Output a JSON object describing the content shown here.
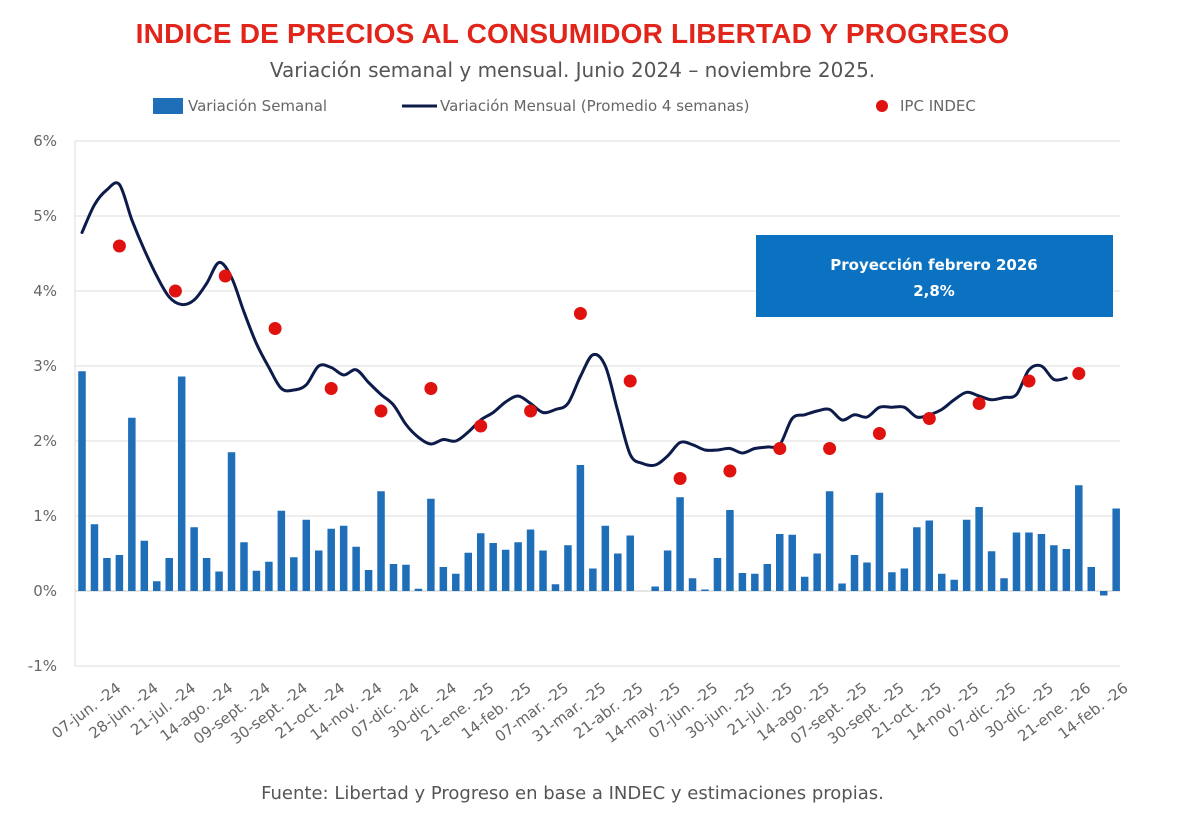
{
  "chart_data": {
    "type": "bar",
    "title": "INDICE DE PRECIOS AL CONSUMIDOR LIBERTAD Y PROGRESO",
    "subtitle": "Variación semanal y mensual. Junio 2024 – noviembre 2025.",
    "source": "Fuente: Libertad y Progreso en base a INDEC y estimaciones propias.",
    "y_ticks": [
      "6%",
      "5%",
      "4%",
      "3%",
      "2%",
      "1%",
      "0%",
      "-1%"
    ],
    "ylim": [
      -1,
      6
    ],
    "grid": true,
    "legend_position": "top",
    "x_tick_labels": [
      "07-jun. -24",
      "28-jun. -24",
      "21-jul. -24",
      "14-ago. -24",
      "09-sept. -24",
      "30-sept. -24",
      "21-oct. -24",
      "14-nov. -24",
      "07-dic. -24",
      "30-dic. -24",
      "21-ene. -25",
      "14-feb. -25",
      "07-mar. -25",
      "31-mar. -25",
      "21-abr. -25",
      "14-may. -25",
      "07-jun. -25",
      "30-jun. -25",
      "21-jul. -25",
      "14-ago. -25",
      "07-sept. -25",
      "30-sept. -25",
      "21-oct. -25",
      "14-nov. -25",
      "07-dic. -25",
      "30-dic. -25",
      "21-ene. -26",
      "14-feb. -26"
    ],
    "series": [
      {
        "name": "Variación Semanal",
        "kind": "bar",
        "color": "#1f6fb8",
        "values": [
          2.93,
          0.89,
          0.44,
          0.48,
          2.31,
          0.67,
          0.13,
          0.44,
          2.86,
          0.85,
          0.44,
          0.26,
          1.85,
          0.65,
          0.27,
          0.39,
          1.07,
          0.45,
          0.95,
          0.54,
          0.83,
          0.87,
          0.59,
          0.28,
          1.33,
          0.36,
          0.35,
          0.03,
          1.23,
          0.32,
          0.23,
          0.51,
          0.77,
          0.64,
          0.55,
          0.65,
          0.82,
          0.54,
          0.09,
          0.61,
          1.68,
          0.3,
          0.87,
          0.5,
          0.74,
          0.0,
          0.06,
          0.54,
          1.25,
          0.17,
          0.02,
          0.44,
          1.08,
          0.24,
          0.23,
          0.36,
          0.76,
          0.75,
          0.19,
          0.5,
          1.33,
          0.1,
          0.48,
          0.38,
          1.31,
          0.25,
          0.3,
          0.85,
          0.94,
          0.23,
          0.15,
          0.95,
          1.12,
          0.53,
          0.17,
          0.78,
          0.78,
          0.76,
          0.61,
          0.56,
          1.41,
          0.32,
          -0.06,
          1.1
        ]
      },
      {
        "name": "Variación Mensual (Promedio 4 semanas)",
        "kind": "line",
        "color": "#0d1b4a",
        "values": [
          4.78,
          5.15,
          5.35,
          5.42,
          4.95,
          4.55,
          4.2,
          3.92,
          3.82,
          3.88,
          4.1,
          4.38,
          4.18,
          3.72,
          3.3,
          2.98,
          2.7,
          2.68,
          2.75,
          3.0,
          2.98,
          2.88,
          2.95,
          2.78,
          2.62,
          2.48,
          2.22,
          2.05,
          1.96,
          2.02,
          2.0,
          2.12,
          2.28,
          2.38,
          2.52,
          2.6,
          2.5,
          2.38,
          2.42,
          2.5,
          2.86,
          3.15,
          3.0,
          2.4,
          1.82,
          1.7,
          1.68,
          1.8,
          1.98,
          1.95,
          1.88,
          1.88,
          1.9,
          1.84,
          1.9,
          1.92,
          1.95,
          2.3,
          2.35,
          2.4,
          2.42,
          2.28,
          2.35,
          2.32,
          2.45,
          2.45,
          2.45,
          2.32,
          2.35,
          2.42,
          2.55,
          2.65,
          2.6,
          2.55,
          2.58,
          2.62,
          2.95,
          3.0,
          2.82,
          2.84
        ]
      },
      {
        "name": "IPC INDEC",
        "kind": "scatter",
        "color": "#e0120f",
        "points": [
          [
            3,
            4.6
          ],
          [
            7.5,
            4.0
          ],
          [
            11.5,
            4.2
          ],
          [
            15.5,
            3.5
          ],
          [
            20,
            2.7
          ],
          [
            24,
            2.4
          ],
          [
            28,
            2.7
          ],
          [
            32,
            2.2
          ],
          [
            36,
            2.4
          ],
          [
            40,
            3.7
          ],
          [
            44,
            2.8
          ],
          [
            48,
            1.5
          ],
          [
            52,
            1.6
          ],
          [
            56,
            1.9
          ],
          [
            60,
            1.9
          ],
          [
            64,
            2.1
          ],
          [
            68,
            2.3
          ],
          [
            72,
            2.5
          ],
          [
            76,
            2.8
          ],
          [
            80,
            2.9
          ]
        ]
      }
    ],
    "annotations": [
      {
        "line1": "Proyección febrero 2026",
        "line2": "2,8%"
      }
    ]
  },
  "colors": {
    "title": "#e1251b",
    "bar": "#1f6fb8",
    "line": "#0d1b4a",
    "dot": "#e0120f",
    "projection_box": "#0b72c2"
  }
}
